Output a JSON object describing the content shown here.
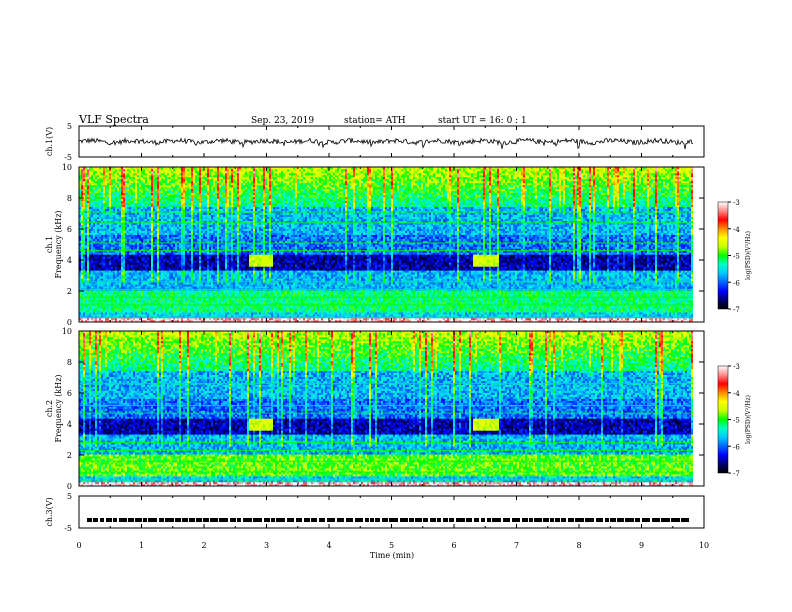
{
  "header": {
    "title": "VLF  Spectra",
    "date": "Sep. 23, 2019",
    "station": "station= ATH",
    "start": "start  UT  =    16: 0   : 1"
  },
  "colors": {
    "colormap": [
      "#000000",
      "#00006e",
      "#0000ff",
      "#0064ff",
      "#00c8ff",
      "#00ffc8",
      "#00ff00",
      "#c8ff00",
      "#ffff00",
      "#ff8c00",
      "#ff0000",
      "#ff8c8c",
      "#ffffff"
    ]
  },
  "chart_data": [
    {
      "type": "line",
      "panel": "ch1",
      "ylabel": "ch.1(V)",
      "ylim": [
        -5,
        5
      ],
      "yticks": [
        "5",
        "-5"
      ],
      "xlim": [
        0,
        10
      ],
      "x_range_data": [
        0,
        9.83
      ],
      "description_values": {
        "baseline": 0,
        "amplitude_approx": 1
      }
    },
    {
      "type": "heatmap",
      "panel": "ch1-spectrogram",
      "ylabel": "ch.1\nFrequency (kHz)",
      "ylim": [
        0,
        10
      ],
      "yticks": [
        "0",
        "2",
        "4",
        "6",
        "8",
        "10"
      ],
      "xlim": [
        0,
        10
      ],
      "colorbar": {
        "label": "log(PSD)(V²/Hz)",
        "range": [
          -7,
          -3
        ],
        "ticks": [
          "-3",
          "-4",
          "-5",
          "-6",
          "-7"
        ]
      },
      "features": {
        "bursts_kHz": 4,
        "burst_times_min": [
          2.9,
          6.5
        ],
        "lines_kHz": [
          0.3,
          1.1,
          1.6,
          2.1,
          2.6,
          4.6,
          5.1,
          6.4,
          7.1
        ]
      }
    },
    {
      "type": "heatmap",
      "panel": "ch2-spectrogram",
      "ylabel": "ch.2\nFrequency (kHz)",
      "ylim": [
        0,
        10
      ],
      "yticks": [
        "0",
        "2",
        "4",
        "6",
        "8",
        "10"
      ],
      "xlim": [
        0,
        10
      ],
      "colorbar": {
        "label": "log(PSD)(V²/Hz)",
        "range": [
          -7,
          -3
        ],
        "ticks": [
          "-3",
          "-4",
          "-5",
          "-6",
          "-7"
        ]
      },
      "features": {
        "bursts_kHz": 4,
        "burst_times_min": [
          2.9,
          6.5
        ],
        "lines_kHz": [
          0.4,
          0.9,
          1.6,
          2.3,
          2.8,
          4.7,
          5.2,
          6.6
        ]
      }
    },
    {
      "type": "line",
      "panel": "ch3",
      "ylabel": "ch.3(V)",
      "ylim": [
        -5,
        5
      ],
      "yticks": [
        "5",
        "-5"
      ],
      "xlim": [
        0,
        10
      ],
      "x_range_data": [
        0,
        9.83
      ],
      "description_values": {
        "level": -2.5
      }
    }
  ],
  "xaxis": {
    "label": "Time  (min)",
    "ticks": [
      "0",
      "1",
      "2",
      "3",
      "4",
      "5",
      "6",
      "7",
      "8",
      "9",
      "10"
    ],
    "range": [
      0,
      10
    ]
  }
}
